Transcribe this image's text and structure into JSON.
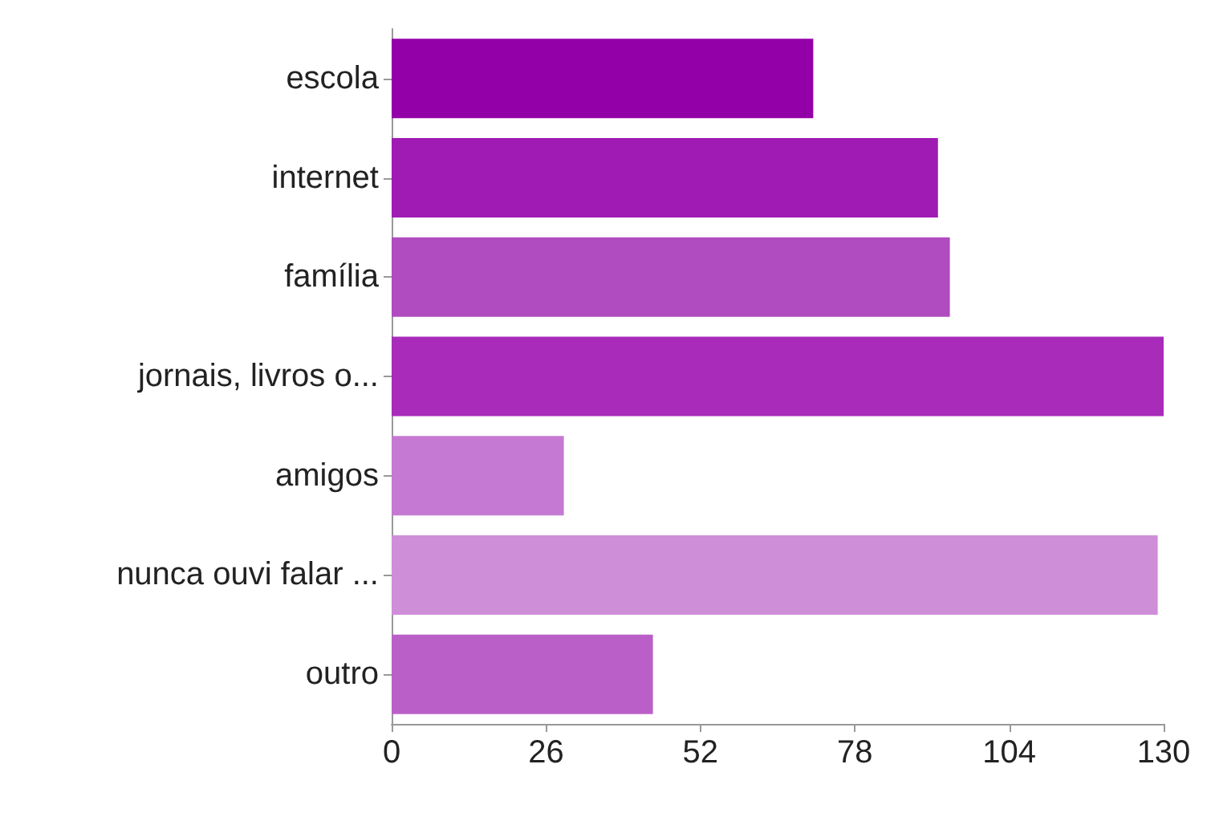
{
  "chart_data": {
    "type": "bar",
    "orientation": "horizontal",
    "categories": [
      "escola",
      "internet",
      "família",
      "jornais, livros o...",
      "amigos",
      "nunca ouvi falar ...",
      "outro"
    ],
    "values": [
      71,
      92,
      94,
      130,
      29,
      129,
      44
    ],
    "colors": [
      "#9400a8",
      "#a01ab4",
      "#b04bc0",
      "#a82bb9",
      "#c679d2",
      "#cf8ed8",
      "#bb5fc8"
    ],
    "xlim": [
      0,
      130
    ],
    "xticks": [
      0,
      26,
      52,
      78,
      104,
      130
    ],
    "grid": false
  }
}
